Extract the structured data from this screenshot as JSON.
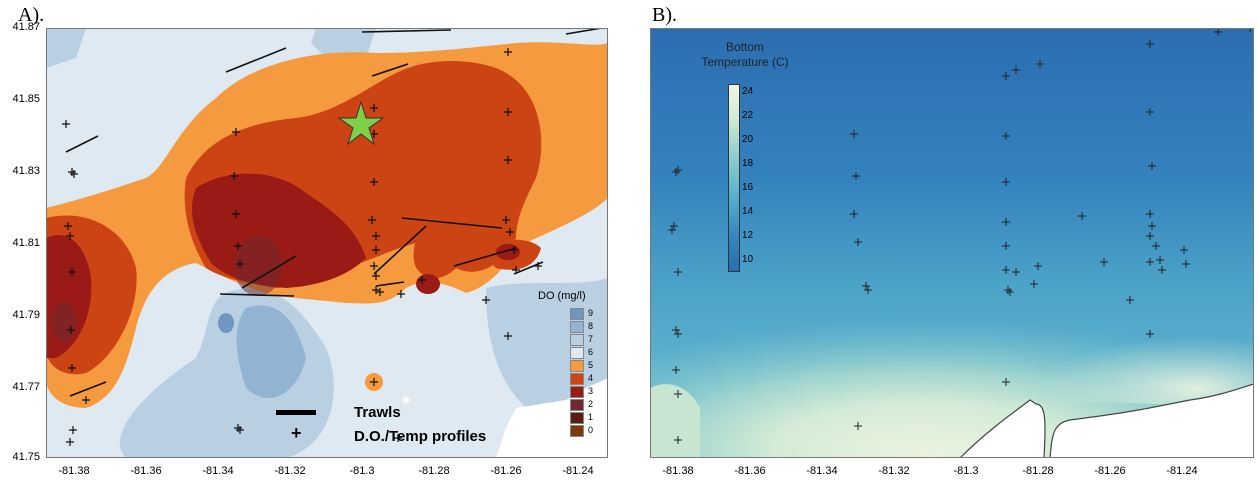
{
  "panels": [
    {
      "id": "A",
      "label": "A)."
    },
    {
      "id": "B",
      "label": "B)."
    }
  ],
  "axes": {
    "y_ticks": [
      "41.87",
      "41.85",
      "41.83",
      "41.81",
      "41.79",
      "41.77",
      "41.75"
    ],
    "x_ticks": [
      "-81.38",
      "-81.36",
      "-81.34",
      "-81.32",
      "-81.3",
      "-81.28",
      "-81.26",
      "-81.24"
    ]
  },
  "panel_a": {
    "legend_title": "DO (mg/l)",
    "legend_levels": [
      "9",
      "8",
      "7",
      "6",
      "5",
      "4",
      "3",
      "2",
      "1",
      "0"
    ],
    "legend_colors": [
      "#6f97bf",
      "#93b3d2",
      "#b9cfe2",
      "#dfe9f1",
      "#f59a3e",
      "#cc4314",
      "#9a1b16",
      "#6e2a30",
      "#5a1e10",
      "#7a3a08"
    ],
    "annotation_trawls": "Trawls",
    "annotation_profiles": "D.O./Temp profiles",
    "marker_star": "star-marker"
  },
  "panel_b": {
    "legend_title_line1": "Bottom",
    "legend_title_line2": "Temperature (C)",
    "legend_levels": [
      "24",
      "22",
      "20",
      "18",
      "16",
      "14",
      "12",
      "10"
    ]
  },
  "colors": {
    "do_high": "#b9cfe2",
    "do_low_orange": "#f59a3e",
    "do_red": "#cc4314",
    "do_dark": "#9a1b16",
    "temp_cold": "#2f78b8",
    "temp_warm": "#e6f1dd",
    "star": "#7fcf49"
  }
}
